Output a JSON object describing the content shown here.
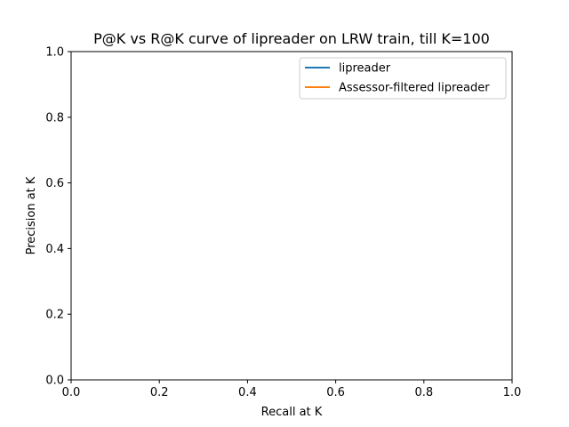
{
  "chart_data": {
    "type": "line",
    "title": "P@K vs R@K curve of lipreader on LRW train, till K=100",
    "xlabel": "Recall at K",
    "ylabel": "Precision at K",
    "xlim": [
      0.0,
      1.0
    ],
    "ylim": [
      0.0,
      1.0
    ],
    "xticks": [
      "0.0",
      "0.2",
      "0.4",
      "0.6",
      "0.8",
      "1.0"
    ],
    "yticks": [
      "0.0",
      "0.2",
      "0.4",
      "0.6",
      "0.8",
      "1.0"
    ],
    "grid": false,
    "legend_position": "upper right",
    "series": [
      {
        "name": "lipreader",
        "color": "#1f77b4",
        "x": [],
        "y": []
      },
      {
        "name": "Assessor-filtered lipreader",
        "color": "#ff7f0e",
        "x": [],
        "y": []
      }
    ]
  }
}
